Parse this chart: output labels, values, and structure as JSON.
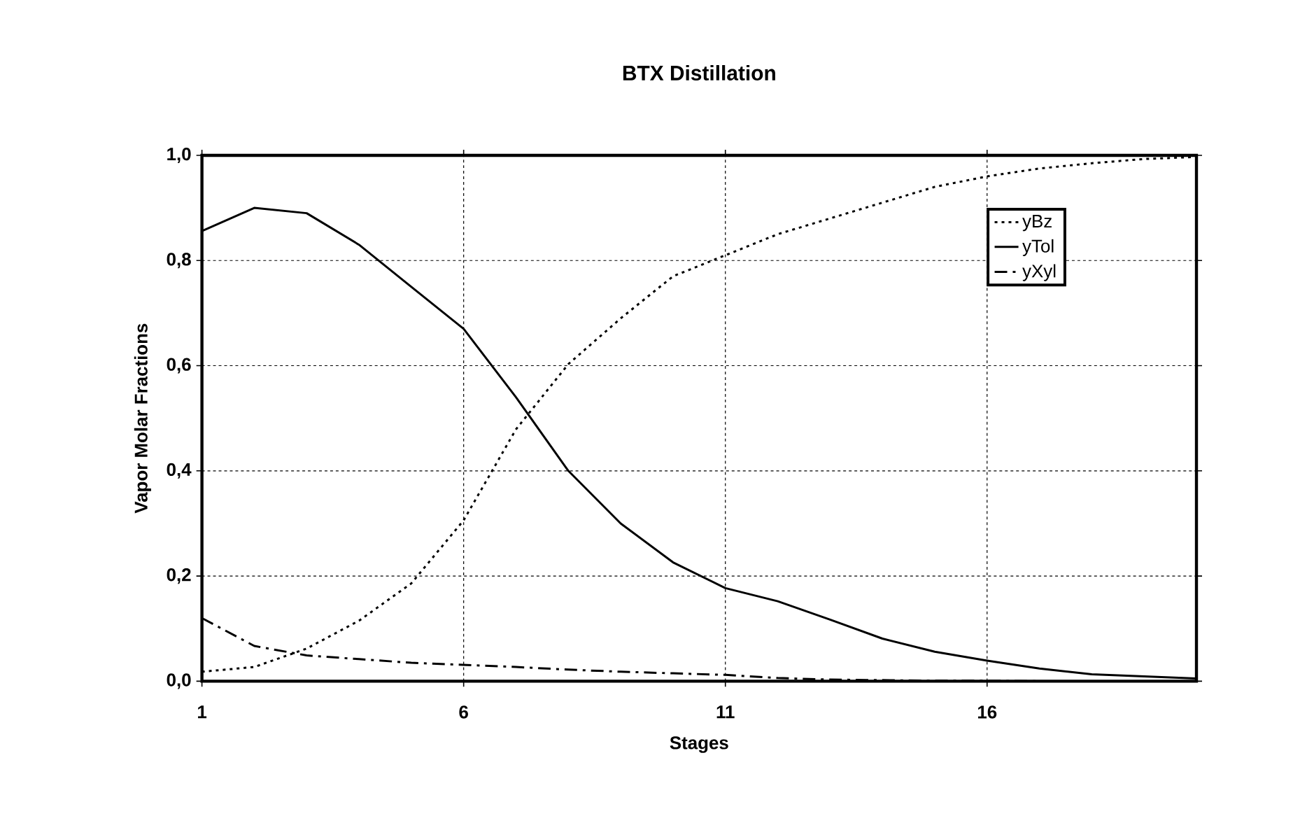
{
  "chart_data": {
    "type": "line",
    "title": "BTX Distillation",
    "xlabel": "Stages",
    "ylabel": "Vapor Molar Fractions",
    "x": [
      1,
      2,
      3,
      4,
      5,
      6,
      7,
      8,
      9,
      10,
      11,
      12,
      13,
      14,
      15,
      16,
      17,
      18,
      19,
      20
    ],
    "series": [
      {
        "name": "yBz",
        "color": "#000000",
        "line_style": "dotted",
        "values": [
          0.018,
          0.027,
          0.062,
          0.115,
          0.186,
          0.306,
          0.479,
          0.603,
          0.69,
          0.77,
          0.81,
          0.85,
          0.88,
          0.91,
          0.94,
          0.96,
          0.975,
          0.985,
          0.993,
          0.997
        ]
      },
      {
        "name": "yTol",
        "color": "#000000",
        "line_style": "solid",
        "values": [
          0.856,
          0.9,
          0.89,
          0.83,
          0.75,
          0.67,
          0.54,
          0.4,
          0.3,
          0.226,
          0.177,
          0.152,
          0.117,
          0.081,
          0.056,
          0.039,
          0.024,
          0.013,
          0.009,
          0.005
        ]
      },
      {
        "name": "yXyl",
        "color": "#000000",
        "line_style": "dashdot",
        "values": [
          0.12,
          0.067,
          0.049,
          0.042,
          0.035,
          0.031,
          0.027,
          0.022,
          0.018,
          0.015,
          0.012,
          0.006,
          0.003,
          0.002,
          0.001,
          0.001,
          0,
          0,
          0,
          0
        ]
      }
    ],
    "xlim": [
      1,
      20
    ],
    "xticks": [
      1,
      6,
      11,
      16
    ],
    "ylim": [
      0,
      1
    ],
    "yticks": [
      {
        "value": 0,
        "label": "0,0"
      },
      {
        "value": 0.2,
        "label": "0,2"
      },
      {
        "value": 0.4,
        "label": "0,4"
      },
      {
        "value": 0.6,
        "label": "0,6"
      },
      {
        "value": 0.8,
        "label": "0,8"
      },
      {
        "value": 1,
        "label": "1,0"
      }
    ],
    "grid": true,
    "legend": "top right",
    "marker": "none"
  }
}
